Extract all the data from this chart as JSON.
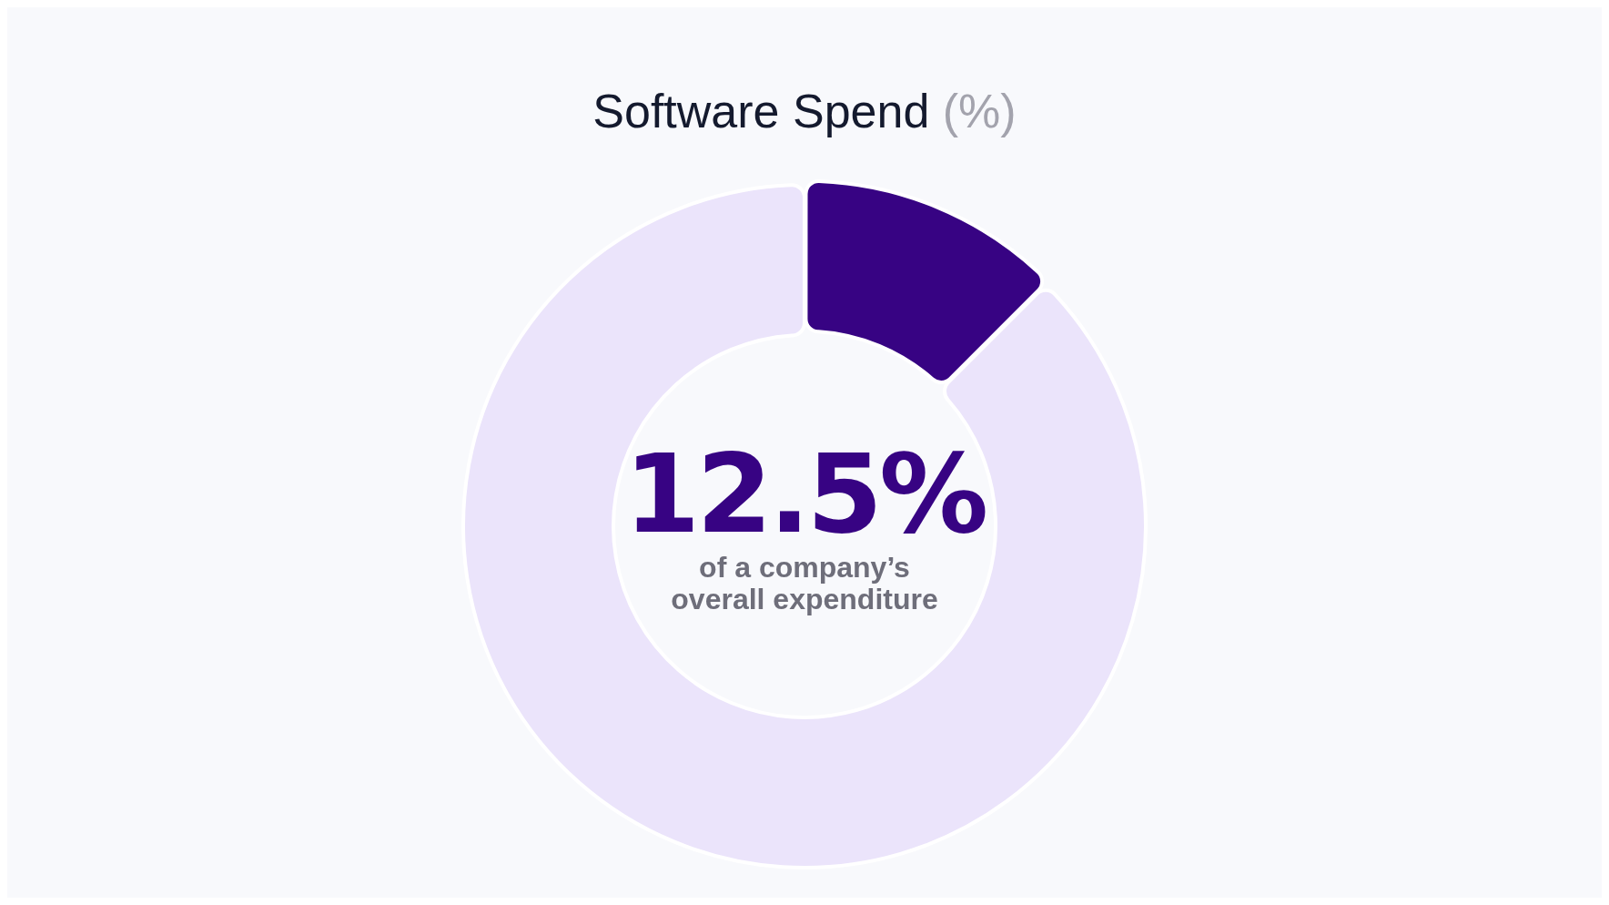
{
  "chart_data": {
    "type": "donut",
    "title": "Software Spend (%)",
    "categories": [
      null,
      null
    ],
    "values": [
      12.5,
      87.5
    ],
    "colors": [
      "#370383",
      "#ebe4fb"
    ],
    "annotations": [
      "12.5%",
      "of a company’s overall expenditure"
    ]
  }
}
